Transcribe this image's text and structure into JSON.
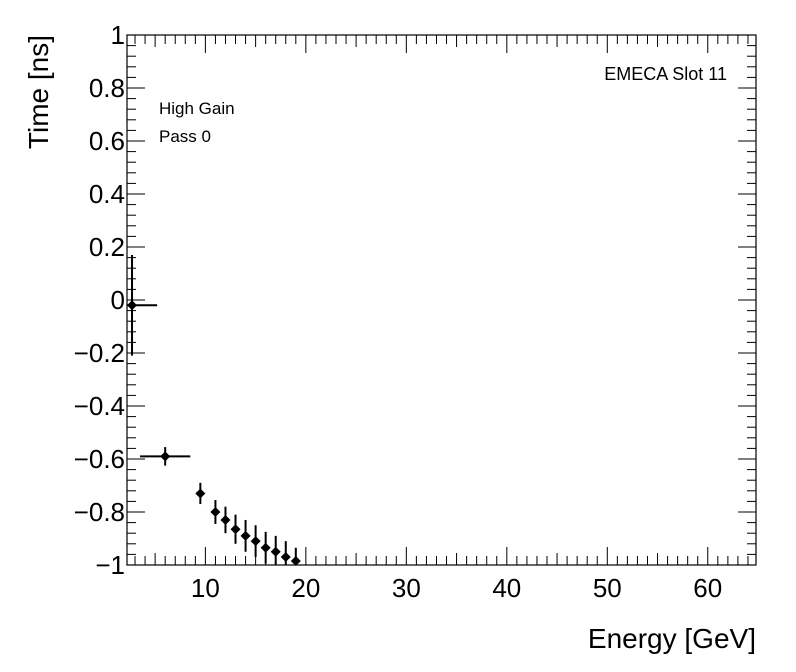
{
  "chart_data": {
    "type": "scatter",
    "title": "",
    "xlabel": "Energy [GeV]",
    "ylabel": "Time [ns]",
    "xlim": [
      2.2,
      64.8
    ],
    "ylim": [
      -1,
      1
    ],
    "x_ticks": [
      10,
      20,
      30,
      40,
      50,
      60
    ],
    "x_tick_labels": [
      "10",
      "20",
      "30",
      "40",
      "50",
      "60"
    ],
    "y_ticks": [
      -1,
      -0.8,
      -0.6,
      -0.4,
      -0.2,
      0,
      0.2,
      0.4,
      0.6,
      0.8,
      1
    ],
    "y_tick_labels": [
      "−1",
      "−0.8",
      "−0.6",
      "−0.4",
      "−0.2",
      "0",
      "0.2",
      "0.4",
      "0.6",
      "0.8",
      "1"
    ],
    "grid": false,
    "annotations": {
      "top_right": "EMECA Slot 11",
      "gain": "High Gain",
      "pass": "Pass 0"
    },
    "series": [
      {
        "marker": "diamond",
        "color": "#000000",
        "points": [
          {
            "x": 2.7,
            "y": -0.02,
            "xerr": 2.5,
            "yerr": 0.19
          },
          {
            "x": 6.0,
            "y": -0.59,
            "xerr": 2.5,
            "yerr": 0.035
          },
          {
            "x": 9.5,
            "y": -0.73,
            "xerr": 0.4,
            "yerr": 0.04
          },
          {
            "x": 11.0,
            "y": -0.8,
            "xerr": 0.4,
            "yerr": 0.045
          },
          {
            "x": 12.0,
            "y": -0.83,
            "xerr": 0.4,
            "yerr": 0.05
          },
          {
            "x": 13.0,
            "y": -0.865,
            "xerr": 0.4,
            "yerr": 0.055
          },
          {
            "x": 14.0,
            "y": -0.89,
            "xerr": 0.4,
            "yerr": 0.06
          },
          {
            "x": 15.0,
            "y": -0.91,
            "xerr": 0.4,
            "yerr": 0.06
          },
          {
            "x": 16.0,
            "y": -0.935,
            "xerr": 0.4,
            "yerr": 0.06
          },
          {
            "x": 17.0,
            "y": -0.95,
            "xerr": 0.4,
            "yerr": 0.06
          },
          {
            "x": 18.0,
            "y": -0.97,
            "xerr": 0.4,
            "yerr": 0.06
          },
          {
            "x": 19.0,
            "y": -0.985,
            "xerr": 0.4,
            "yerr": 0.05
          }
        ]
      }
    ]
  }
}
